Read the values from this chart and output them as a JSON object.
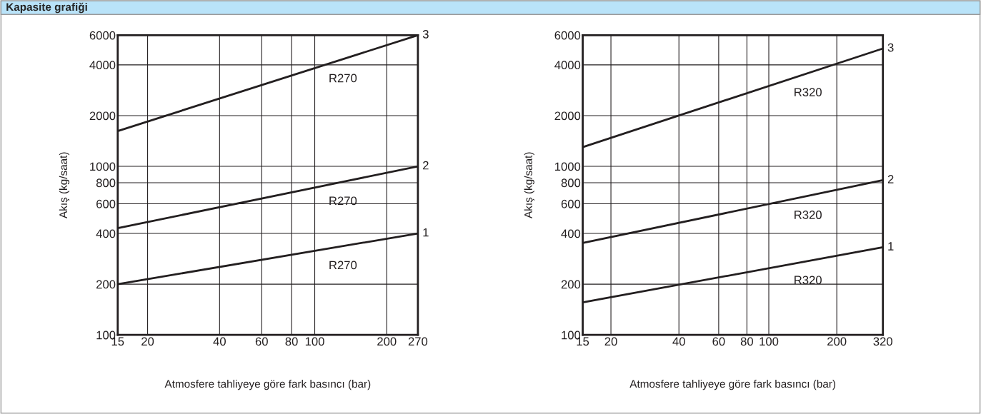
{
  "chart_data": [
    {
      "type": "line",
      "title": "Kapasite grafiği",
      "xlabel": "Atmosfere tahliyeye göre fark basıncı (bar)",
      "ylabel": "Akış (kg/saat)",
      "log": "xy",
      "grid": true,
      "marker": "none",
      "line_style": "solid",
      "legend": false,
      "x": [
        15,
        270
      ],
      "xlim": [
        15,
        270
      ],
      "ylim": [
        100,
        6000
      ],
      "xticks": [
        15,
        20,
        40,
        60,
        80,
        100,
        200,
        270
      ],
      "yticks": [
        100,
        200,
        400,
        600,
        800,
        1000,
        2000,
        4000,
        6000
      ],
      "series": [
        {
          "name": "1",
          "color": "#231f20",
          "values": [
            200,
            400
          ]
        },
        {
          "name": "2",
          "color": "#231f20",
          "values": [
            430,
            1000
          ]
        },
        {
          "name": "3",
          "color": "#231f20",
          "values": [
            1620,
            6000
          ]
        }
      ],
      "annotations": [
        "R270",
        "R270",
        "R270"
      ]
    },
    {
      "type": "line",
      "xlabel": "Atmosfere tahliyeye göre fark basıncı (bar)",
      "ylabel": "Akış (kg/saat)",
      "log": "xy",
      "grid": true,
      "marker": "none",
      "line_style": "solid",
      "legend": false,
      "x": [
        15,
        320
      ],
      "xlim": [
        15,
        320
      ],
      "ylim": [
        100,
        6000
      ],
      "xticks": [
        15,
        20,
        40,
        60,
        80,
        100,
        200,
        320
      ],
      "yticks": [
        100,
        200,
        400,
        600,
        800,
        1000,
        2000,
        4000,
        6000
      ],
      "series": [
        {
          "name": "1",
          "color": "#231f20",
          "values": [
            156,
            331
          ]
        },
        {
          "name": "2",
          "color": "#231f20",
          "values": [
            351,
            828
          ]
        },
        {
          "name": "3",
          "color": "#231f20",
          "values": [
            1300,
            5000
          ]
        }
      ],
      "annotations": [
        "R320",
        "R320",
        "R320"
      ]
    }
  ]
}
